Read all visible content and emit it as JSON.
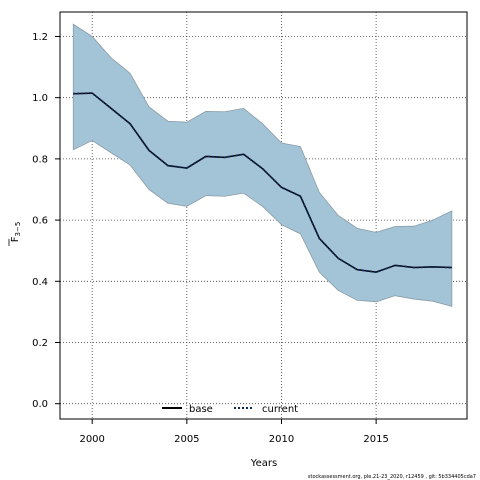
{
  "chart_data": {
    "type": "line",
    "xlabel": "Years",
    "ylabel_main": "F",
    "ylabel_sub": "3−5",
    "xlim": [
      1998.3,
      2019.8
    ],
    "ylim": [
      -0.05,
      1.28
    ],
    "x_ticks": [
      2000,
      2005,
      2010,
      2015
    ],
    "x_tick_labels": [
      "2000",
      "2005",
      "2010",
      "2015"
    ],
    "y_ticks": [
      0.0,
      0.2,
      0.4,
      0.6,
      0.8,
      1.0,
      1.2
    ],
    "y_tick_labels": [
      "0.0",
      "0.2",
      "0.4",
      "0.6",
      "0.8",
      "1.0",
      "1.2"
    ],
    "grid": true,
    "legend_placement": "bottom-center",
    "x": [
      1999,
      2000,
      2001,
      2002,
      2003,
      2004,
      2005,
      2006,
      2007,
      2008,
      2009,
      2010,
      2011,
      2012,
      2013,
      2014,
      2015,
      2016,
      2017,
      2018,
      2019
    ],
    "band": {
      "color": "#a3c4d6",
      "edge_color": "#8a9ba6",
      "lower": [
        0.83,
        0.86,
        0.82,
        0.78,
        0.7,
        0.655,
        0.645,
        0.68,
        0.678,
        0.688,
        0.645,
        0.585,
        0.555,
        0.43,
        0.37,
        0.338,
        0.333,
        0.353,
        0.342,
        0.335,
        0.318
      ],
      "upper": [
        1.24,
        1.2,
        1.13,
        1.08,
        0.97,
        0.923,
        0.92,
        0.955,
        0.954,
        0.965,
        0.915,
        0.852,
        0.84,
        0.69,
        0.615,
        0.573,
        0.56,
        0.579,
        0.58,
        0.6,
        0.63
      ]
    },
    "series": [
      {
        "name": "base",
        "color": "#000000",
        "style": "solid",
        "values": [
          1.013,
          1.015,
          0.965,
          0.915,
          0.828,
          0.778,
          0.77,
          0.808,
          0.805,
          0.815,
          0.768,
          0.707,
          0.678,
          0.54,
          0.475,
          0.438,
          0.43,
          0.452,
          0.445,
          0.447,
          0.445
        ]
      },
      {
        "name": "current",
        "color": "#0b2a5c",
        "style": "dotted",
        "values": [
          1.013,
          1.015,
          0.965,
          0.915,
          0.828,
          0.778,
          0.77,
          0.808,
          0.805,
          0.815,
          0.768,
          0.707,
          0.678,
          0.54,
          0.475,
          0.438,
          0.43,
          0.452,
          0.445,
          0.447,
          0.445
        ]
      }
    ]
  },
  "footer": "stockassessment.org, ple.21-23_2020, r12459 , git: 5b334405cda7"
}
